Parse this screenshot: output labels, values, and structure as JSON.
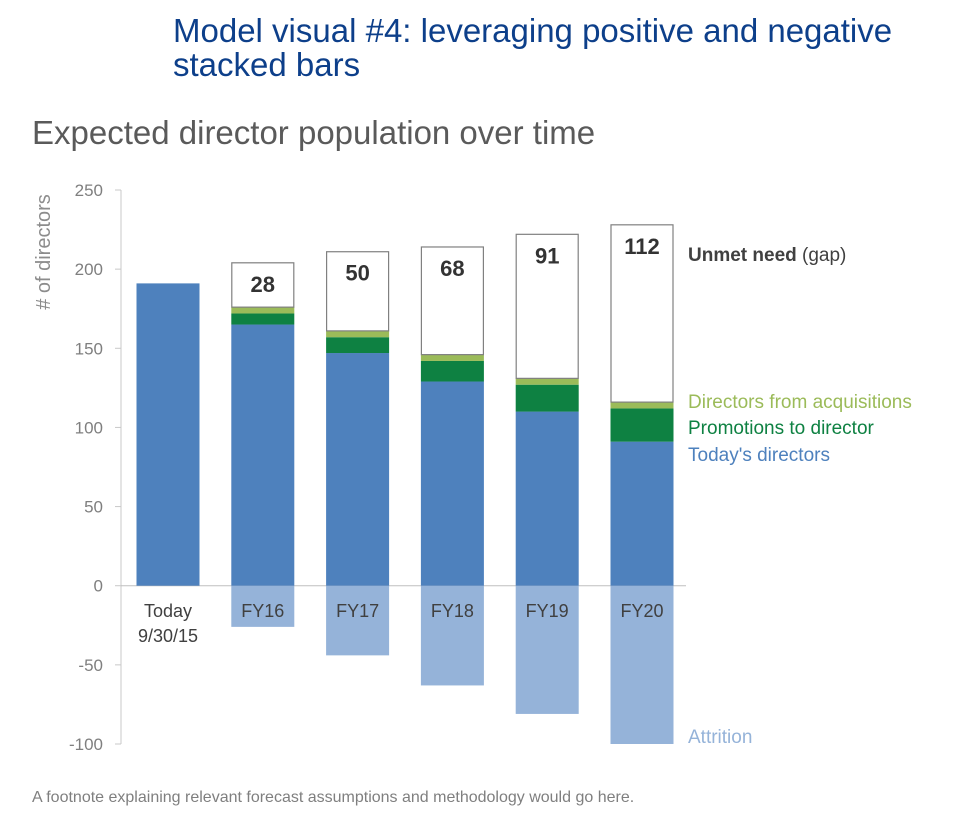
{
  "headline": "Model visual #4: leveraging positive and negative stacked bars",
  "footnote": "A footnote explaining relevant forecast assumptions and methodology would go here.",
  "colors": {
    "todays_directors": "#4e81bd",
    "promotions": "#0e8142",
    "acquisitions": "#9bbb59",
    "attrition": "#95b3d9",
    "gap_border": "#808080"
  },
  "chart_data": {
    "type": "bar",
    "title": "Expected director population over time",
    "ylabel": "# of directors",
    "ylim": [
      -100,
      250
    ],
    "yticks": [
      250,
      200,
      150,
      100,
      50,
      0,
      -50,
      -100
    ],
    "categories": [
      [
        "Today",
        "9/30/15"
      ],
      [
        "FY16"
      ],
      [
        "FY17"
      ],
      [
        "FY18"
      ],
      [
        "FY19"
      ],
      [
        "FY20"
      ]
    ],
    "series": [
      {
        "name": "Today's directors",
        "key": "todays_directors",
        "values": [
          191,
          165,
          147,
          129,
          110,
          91
        ]
      },
      {
        "name": "Promotions to director",
        "key": "promotions",
        "values": [
          0,
          7,
          10,
          13,
          17,
          21
        ]
      },
      {
        "name": "Directors from acquisitions",
        "key": "acquisitions",
        "values": [
          0,
          4,
          4,
          4,
          4,
          4
        ]
      },
      {
        "name": "Unmet need (gap)",
        "key": "gap",
        "values": [
          0,
          28,
          50,
          68,
          91,
          112
        ]
      },
      {
        "name": "Attrition",
        "key": "attrition",
        "values": [
          0,
          -26,
          -44,
          -63,
          -81,
          -100
        ]
      }
    ],
    "gap_labels": [
      "",
      "28",
      "50",
      "68",
      "91",
      "112"
    ],
    "legend": {
      "gap": [
        "Unmet need ",
        "(gap)"
      ],
      "acquisitions": "Directors from acquisitions",
      "promotions": "Promotions to director",
      "todays_directors": "Today's directors",
      "attrition": "Attrition"
    }
  }
}
